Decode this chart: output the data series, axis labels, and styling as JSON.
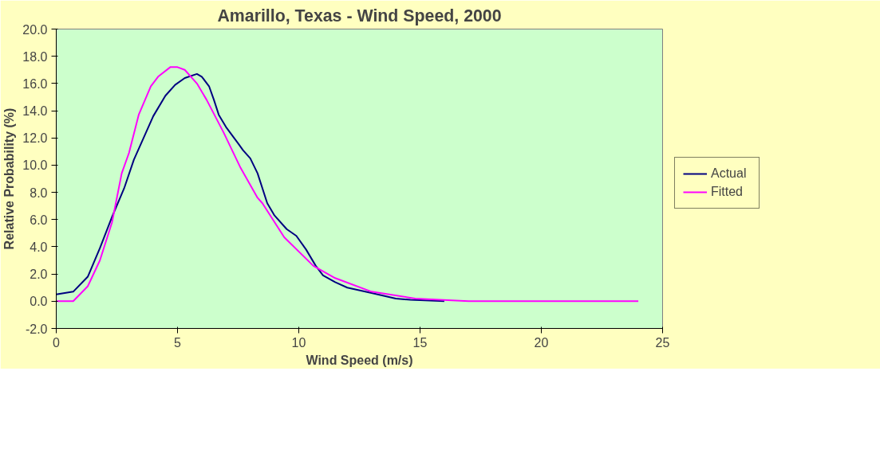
{
  "chart_data": {
    "type": "line",
    "title": "Amarillo, Texas - Wind Speed, 2000",
    "xlabel": "Wind Speed (m/s)",
    "ylabel": "Relative Probability (%)",
    "xlim": [
      0,
      25
    ],
    "xticks": [
      0,
      5,
      10,
      15,
      20,
      25
    ],
    "ylim": [
      -2,
      20
    ],
    "yticks": [
      {
        "value": -2,
        "label": "-2.0"
      },
      {
        "value": 0,
        "label": "0.0"
      },
      {
        "value": 2,
        "label": "2.0"
      },
      {
        "value": 4,
        "label": "4.0"
      },
      {
        "value": 6,
        "label": "6.0"
      },
      {
        "value": 8,
        "label": "8.0"
      },
      {
        "value": 10,
        "label": "10.0"
      },
      {
        "value": 12,
        "label": "12.0"
      },
      {
        "value": 14,
        "label": "14.0"
      },
      {
        "value": 16,
        "label": "16.0"
      },
      {
        "value": 18,
        "label": "18.0"
      },
      {
        "value": 20,
        "label": "20.0"
      }
    ],
    "grid": false,
    "legend": "right",
    "marker": "none",
    "line_style": "solid",
    "series": [
      {
        "name": "Actual",
        "color": "#000080",
        "x": [
          0,
          0.7,
          1.3,
          1.8,
          2.3,
          2.8,
          3.2,
          3.5,
          4,
          4.5,
          4.9,
          5.3,
          5.8,
          6,
          6.3,
          6.5,
          6.7,
          7,
          7.5,
          7.7,
          8,
          8.3,
          8.7,
          9,
          9.5,
          9.9,
          10.3,
          10.7,
          11,
          11.5,
          12,
          13,
          14,
          14.6,
          16
        ],
        "values": [
          0.5,
          0.7,
          1.8,
          3.9,
          6.2,
          8.3,
          10.4,
          11.6,
          13.6,
          15.1,
          15.9,
          16.4,
          16.7,
          16.5,
          15.8,
          14.8,
          13.7,
          12.8,
          11.6,
          11.1,
          10.5,
          9.4,
          7.2,
          6.3,
          5.3,
          4.8,
          3.8,
          2.6,
          1.9,
          1.4,
          1.0,
          0.6,
          0.2,
          0.1,
          0
        ]
      },
      {
        "name": "Fitted",
        "color": "#ff00ff",
        "x": [
          0,
          0.7,
          1.3,
          1.8,
          2.3,
          2.7,
          3,
          3.4,
          3.9,
          4.2,
          4.7,
          5,
          5.3,
          5.8,
          6.2,
          6.9,
          7.6,
          8.3,
          8.5,
          9.4,
          10.6,
          11.5,
          13,
          14.8,
          17,
          20,
          24
        ],
        "values": [
          0,
          0,
          1.1,
          3.0,
          5.8,
          9.4,
          10.9,
          13.7,
          15.8,
          16.5,
          17.2,
          17.2,
          17.0,
          16.0,
          14.8,
          12.4,
          9.8,
          7.6,
          7.2,
          4.7,
          2.6,
          1.7,
          0.7,
          0.2,
          0,
          0,
          0
        ]
      }
    ]
  }
}
